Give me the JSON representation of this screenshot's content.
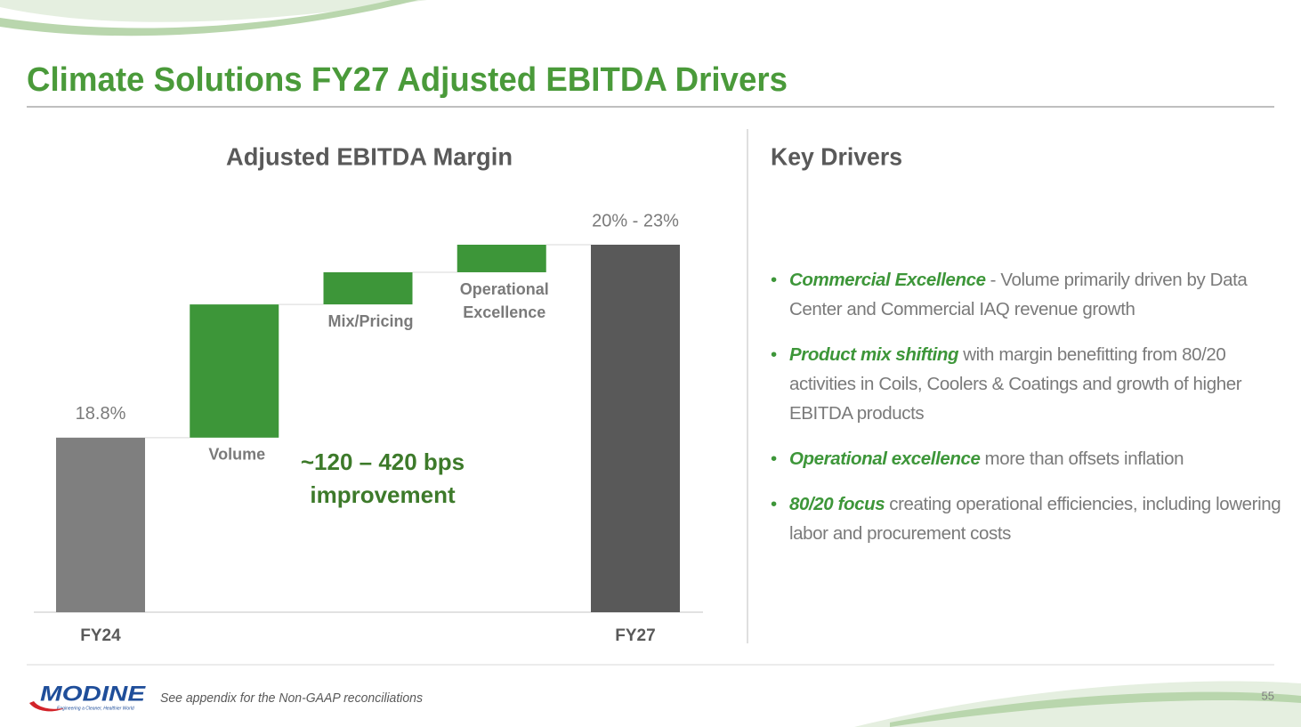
{
  "slide": {
    "title": "Climate Solutions FY27 Adjusted EBITDA Drivers",
    "footnote": "See appendix for the Non-GAAP reconciliations",
    "page_number": "55",
    "logo": "MODINE",
    "tagline": "Engineering a Cleaner, Healthier World"
  },
  "key_drivers": {
    "heading": "Key Drivers",
    "items": [
      {
        "lead": "Commercial Excellence",
        "text": "- Volume primarily driven by Data Center and Commercial IAQ revenue growth"
      },
      {
        "lead": "Product mix shifting",
        "text": "with margin benefitting from 80/20 activities in Coils, Coolers & Coatings and growth of higher EBITDA products"
      },
      {
        "lead": "Operational excellence",
        "text": "more than offsets inflation"
      },
      {
        "lead": "80/20 focus",
        "text": "creating operational efficiencies, including lowering labor and procurement costs"
      }
    ]
  },
  "chart_data": {
    "type": "waterfall",
    "title": "Adjusted EBITDA Margin",
    "categories": [
      "FY24",
      "Volume",
      "Mix/Pricing",
      "Operational Excellence",
      "FY27"
    ],
    "values": [
      18.8,
      2.9,
      0.7,
      0.6,
      23
    ],
    "value_labels": [
      "18.8%",
      null,
      null,
      null,
      "20% - 23%"
    ],
    "measures": [
      "absolute",
      "relative",
      "relative",
      "relative",
      "absolute"
    ],
    "colors": [
      "#7f7f7f",
      "#3d9639",
      "#3d9639",
      "#3d9639",
      "#595959"
    ],
    "annotation": [
      "~120 – 420 bps",
      "improvement"
    ],
    "ylim": [
      15,
      23
    ]
  }
}
